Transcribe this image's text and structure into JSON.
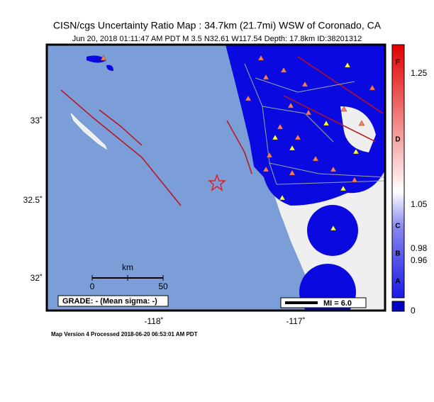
{
  "header": {
    "title": "CISN/cgs Uncertainty Ratio Map : 34.7km (21.7mi) WSW of Coronado, CA",
    "subtitle": "Jun 20, 2018 01:11:47 AM PDT   M 3.5   N32.61 W117.54   Depth: 17.8km   ID:38201312"
  },
  "map": {
    "lat_labels": [
      "33˚",
      "32.5˚",
      "32˚"
    ],
    "lon_labels": [
      "-118˚",
      "-117˚"
    ],
    "scale_bar": {
      "unit": "km",
      "start": "0",
      "end": "50"
    },
    "grade_box": "GRADE: - (Mean sigma: -)",
    "mi_box": "MI = 6.0"
  },
  "colorbar": {
    "values": [
      "1.25",
      "1.05",
      "0.98",
      "0.96",
      "0"
    ],
    "grades": [
      "F",
      "D",
      "C",
      "B",
      "A"
    ]
  },
  "footer": "Map Version 4 Processed 2018-06-20 06:53:01 AM PDT"
}
